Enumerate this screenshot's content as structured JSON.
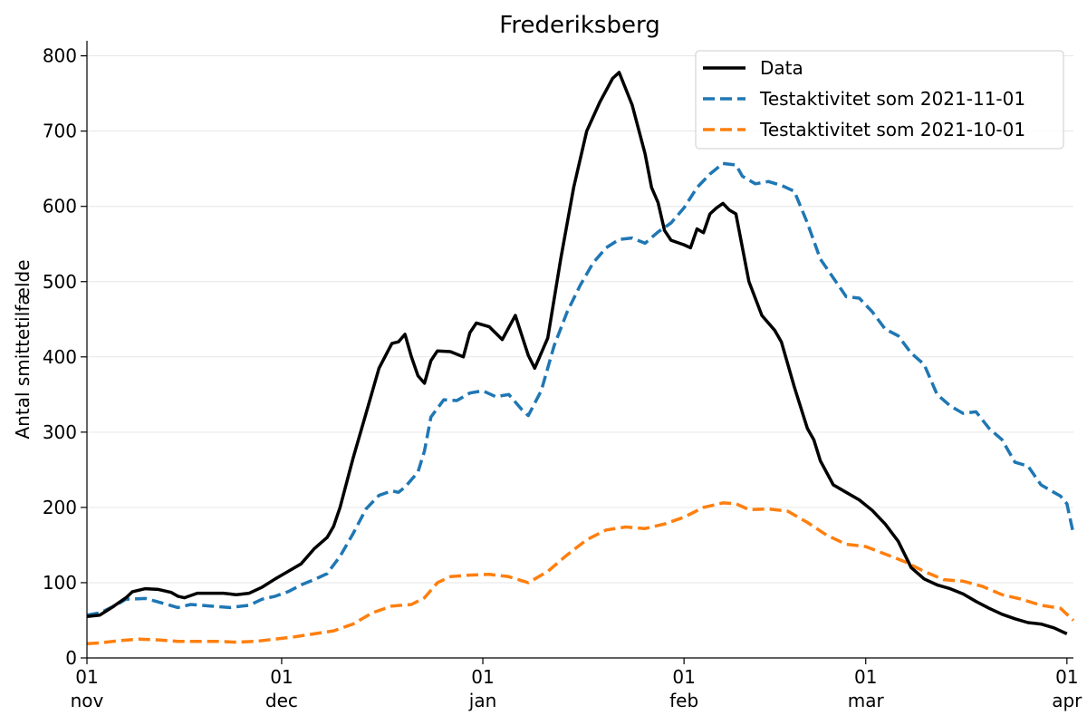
{
  "chart_data": {
    "type": "line",
    "title": "Frederiksberg",
    "xlabel": "",
    "ylabel": "Antal smittetilfælde",
    "ylim": [
      0,
      820
    ],
    "yticks": [
      0,
      100,
      200,
      300,
      400,
      500,
      600,
      700,
      800
    ],
    "xlim": [
      "2021-11-01",
      "2022-04-02"
    ],
    "xticks": [
      {
        "date": "2021-11-01",
        "day": "01",
        "month": "nov"
      },
      {
        "date": "2021-12-01",
        "day": "01",
        "month": "dec"
      },
      {
        "date": "2022-01-01",
        "day": "01",
        "month": "jan"
      },
      {
        "date": "2022-02-01",
        "day": "01",
        "month": "feb"
      },
      {
        "date": "2022-03-01",
        "day": "01",
        "month": "mar"
      },
      {
        "date": "2022-04-01",
        "day": "01",
        "month": "apr"
      }
    ],
    "grid": "horizontal",
    "legend_position": "top-right",
    "series": [
      {
        "name": "Data",
        "color": "#000000",
        "dash": "solid",
        "points": [
          [
            "2021-11-01",
            55
          ],
          [
            "2021-11-03",
            57
          ],
          [
            "2021-11-05",
            68
          ],
          [
            "2021-11-07",
            80
          ],
          [
            "2021-11-08",
            88
          ],
          [
            "2021-11-10",
            92
          ],
          [
            "2021-11-12",
            91
          ],
          [
            "2021-11-14",
            87
          ],
          [
            "2021-11-15",
            82
          ],
          [
            "2021-11-16",
            80
          ],
          [
            "2021-11-18",
            86
          ],
          [
            "2021-11-20",
            86
          ],
          [
            "2021-11-22",
            86
          ],
          [
            "2021-11-24",
            84
          ],
          [
            "2021-11-26",
            86
          ],
          [
            "2021-11-28",
            94
          ],
          [
            "2021-11-30",
            105
          ],
          [
            "2021-12-02",
            115
          ],
          [
            "2021-12-04",
            125
          ],
          [
            "2021-12-06",
            145
          ],
          [
            "2021-12-08",
            160
          ],
          [
            "2021-12-09",
            175
          ],
          [
            "2021-12-10",
            200
          ],
          [
            "2021-12-12",
            265
          ],
          [
            "2021-12-14",
            325
          ],
          [
            "2021-12-16",
            385
          ],
          [
            "2021-12-18",
            418
          ],
          [
            "2021-12-19",
            420
          ],
          [
            "2021-12-20",
            430
          ],
          [
            "2021-12-21",
            400
          ],
          [
            "2021-12-22",
            375
          ],
          [
            "2021-12-23",
            365
          ],
          [
            "2021-12-24",
            395
          ],
          [
            "2021-12-25",
            408
          ],
          [
            "2021-12-27",
            407
          ],
          [
            "2021-12-29",
            400
          ],
          [
            "2021-12-30",
            432
          ],
          [
            "2021-12-31",
            445
          ],
          [
            "2022-01-02",
            440
          ],
          [
            "2022-01-04",
            423
          ],
          [
            "2022-01-06",
            455
          ],
          [
            "2022-01-08",
            402
          ],
          [
            "2022-01-09",
            385
          ],
          [
            "2022-01-11",
            425
          ],
          [
            "2022-01-13",
            530
          ],
          [
            "2022-01-15",
            625
          ],
          [
            "2022-01-17",
            700
          ],
          [
            "2022-01-19",
            738
          ],
          [
            "2022-01-21",
            770
          ],
          [
            "2022-01-22",
            778
          ],
          [
            "2022-01-24",
            735
          ],
          [
            "2022-01-26",
            670
          ],
          [
            "2022-01-27",
            625
          ],
          [
            "2022-01-28",
            605
          ],
          [
            "2022-01-29",
            568
          ],
          [
            "2022-01-30",
            555
          ],
          [
            "2022-02-01",
            549
          ],
          [
            "2022-02-02",
            545
          ],
          [
            "2022-02-03",
            570
          ],
          [
            "2022-02-04",
            565
          ],
          [
            "2022-02-05",
            590
          ],
          [
            "2022-02-06",
            598
          ],
          [
            "2022-02-07",
            604
          ],
          [
            "2022-02-08",
            595
          ],
          [
            "2022-02-09",
            590
          ],
          [
            "2022-02-11",
            500
          ],
          [
            "2022-02-13",
            455
          ],
          [
            "2022-02-15",
            435
          ],
          [
            "2022-02-16",
            420
          ],
          [
            "2022-02-18",
            360
          ],
          [
            "2022-02-20",
            305
          ],
          [
            "2022-02-21",
            290
          ],
          [
            "2022-02-22",
            262
          ],
          [
            "2022-02-24",
            230
          ],
          [
            "2022-02-26",
            220
          ],
          [
            "2022-02-28",
            210
          ],
          [
            "2022-03-02",
            196
          ],
          [
            "2022-03-04",
            178
          ],
          [
            "2022-03-06",
            155
          ],
          [
            "2022-03-08",
            120
          ],
          [
            "2022-03-10",
            105
          ],
          [
            "2022-03-12",
            97
          ],
          [
            "2022-03-14",
            92
          ],
          [
            "2022-03-16",
            85
          ],
          [
            "2022-03-18",
            75
          ],
          [
            "2022-03-20",
            66
          ],
          [
            "2022-03-22",
            58
          ],
          [
            "2022-03-24",
            52
          ],
          [
            "2022-03-26",
            47
          ],
          [
            "2022-03-28",
            45
          ],
          [
            "2022-03-30",
            40
          ],
          [
            "2022-04-01",
            32
          ]
        ]
      },
      {
        "name": "Testaktivitet som 2021-11-01",
        "color": "#1f77b4",
        "dash": "dashed",
        "points": [
          [
            "2021-11-01",
            57
          ],
          [
            "2021-11-03",
            60
          ],
          [
            "2021-11-05",
            68
          ],
          [
            "2021-11-07",
            78
          ],
          [
            "2021-11-10",
            79
          ],
          [
            "2021-11-13",
            72
          ],
          [
            "2021-11-15",
            67
          ],
          [
            "2021-11-17",
            71
          ],
          [
            "2021-11-20",
            69
          ],
          [
            "2021-11-23",
            67
          ],
          [
            "2021-11-26",
            70
          ],
          [
            "2021-11-28",
            78
          ],
          [
            "2021-11-30",
            82
          ],
          [
            "2021-12-02",
            88
          ],
          [
            "2021-12-04",
            97
          ],
          [
            "2021-12-06",
            104
          ],
          [
            "2021-12-08",
            112
          ],
          [
            "2021-12-10",
            135
          ],
          [
            "2021-12-12",
            165
          ],
          [
            "2021-12-14",
            198
          ],
          [
            "2021-12-16",
            216
          ],
          [
            "2021-12-18",
            222
          ],
          [
            "2021-12-19",
            220
          ],
          [
            "2021-12-20",
            227
          ],
          [
            "2021-12-22",
            247
          ],
          [
            "2021-12-23",
            275
          ],
          [
            "2021-12-24",
            320
          ],
          [
            "2021-12-26",
            343
          ],
          [
            "2021-12-28",
            342
          ],
          [
            "2021-12-30",
            352
          ],
          [
            "2022-01-01",
            355
          ],
          [
            "2022-01-03",
            347
          ],
          [
            "2022-01-05",
            350
          ],
          [
            "2022-01-07",
            330
          ],
          [
            "2022-01-08",
            322
          ],
          [
            "2022-01-10",
            355
          ],
          [
            "2022-01-12",
            415
          ],
          [
            "2022-01-14",
            460
          ],
          [
            "2022-01-16",
            495
          ],
          [
            "2022-01-18",
            525
          ],
          [
            "2022-01-20",
            545
          ],
          [
            "2022-01-22",
            556
          ],
          [
            "2022-01-24",
            558
          ],
          [
            "2022-01-26",
            551
          ],
          [
            "2022-01-28",
            566
          ],
          [
            "2022-01-30",
            578
          ],
          [
            "2022-02-01",
            598
          ],
          [
            "2022-02-03",
            625
          ],
          [
            "2022-02-05",
            643
          ],
          [
            "2022-02-07",
            657
          ],
          [
            "2022-02-09",
            655
          ],
          [
            "2022-02-10",
            640
          ],
          [
            "2022-02-12",
            630
          ],
          [
            "2022-02-14",
            633
          ],
          [
            "2022-02-16",
            628
          ],
          [
            "2022-02-18",
            620
          ],
          [
            "2022-02-20",
            578
          ],
          [
            "2022-02-22",
            530
          ],
          [
            "2022-02-24",
            505
          ],
          [
            "2022-02-26",
            480
          ],
          [
            "2022-02-28",
            478
          ],
          [
            "2022-03-02",
            460
          ],
          [
            "2022-03-04",
            437
          ],
          [
            "2022-03-06",
            428
          ],
          [
            "2022-03-08",
            405
          ],
          [
            "2022-03-10",
            390
          ],
          [
            "2022-03-12",
            350
          ],
          [
            "2022-03-14",
            335
          ],
          [
            "2022-03-16",
            325
          ],
          [
            "2022-03-18",
            327
          ],
          [
            "2022-03-20",
            305
          ],
          [
            "2022-03-22",
            290
          ],
          [
            "2022-03-24",
            260
          ],
          [
            "2022-03-26",
            255
          ],
          [
            "2022-03-28",
            230
          ],
          [
            "2022-03-30",
            220
          ],
          [
            "2022-03-31",
            215
          ],
          [
            "2022-04-01",
            205
          ],
          [
            "2022-04-02",
            165
          ]
        ]
      },
      {
        "name": "Testaktivitet som 2021-10-01",
        "color": "#ff7f0e",
        "dash": "dashed",
        "points": [
          [
            "2021-11-01",
            19
          ],
          [
            "2021-11-03",
            20
          ],
          [
            "2021-11-06",
            23
          ],
          [
            "2021-11-09",
            25
          ],
          [
            "2021-11-12",
            24
          ],
          [
            "2021-11-15",
            22
          ],
          [
            "2021-11-18",
            22
          ],
          [
            "2021-11-21",
            22
          ],
          [
            "2021-11-24",
            21
          ],
          [
            "2021-11-27",
            22
          ],
          [
            "2021-11-30",
            25
          ],
          [
            "2021-12-03",
            28
          ],
          [
            "2021-12-06",
            32
          ],
          [
            "2021-12-09",
            36
          ],
          [
            "2021-12-12",
            45
          ],
          [
            "2021-12-15",
            60
          ],
          [
            "2021-12-18",
            69
          ],
          [
            "2021-12-21",
            71
          ],
          [
            "2021-12-23",
            80
          ],
          [
            "2021-12-25",
            100
          ],
          [
            "2021-12-27",
            108
          ],
          [
            "2021-12-30",
            110
          ],
          [
            "2022-01-02",
            111
          ],
          [
            "2022-01-05",
            108
          ],
          [
            "2022-01-08",
            100
          ],
          [
            "2022-01-11",
            115
          ],
          [
            "2022-01-14",
            137
          ],
          [
            "2022-01-17",
            157
          ],
          [
            "2022-01-20",
            170
          ],
          [
            "2022-01-23",
            174
          ],
          [
            "2022-01-26",
            172
          ],
          [
            "2022-01-29",
            178
          ],
          [
            "2022-02-01",
            187
          ],
          [
            "2022-02-04",
            200
          ],
          [
            "2022-02-07",
            206
          ],
          [
            "2022-02-09",
            205
          ],
          [
            "2022-02-11",
            197
          ],
          [
            "2022-02-14",
            198
          ],
          [
            "2022-02-17",
            195
          ],
          [
            "2022-02-20",
            180
          ],
          [
            "2022-02-23",
            163
          ],
          [
            "2022-02-26",
            151
          ],
          [
            "2022-03-01",
            148
          ],
          [
            "2022-03-04",
            138
          ],
          [
            "2022-03-07",
            128
          ],
          [
            "2022-03-10",
            115
          ],
          [
            "2022-03-13",
            104
          ],
          [
            "2022-03-16",
            102
          ],
          [
            "2022-03-19",
            95
          ],
          [
            "2022-03-22",
            84
          ],
          [
            "2022-03-25",
            78
          ],
          [
            "2022-03-28",
            70
          ],
          [
            "2022-03-31",
            66
          ],
          [
            "2022-04-02",
            50
          ]
        ]
      }
    ]
  }
}
